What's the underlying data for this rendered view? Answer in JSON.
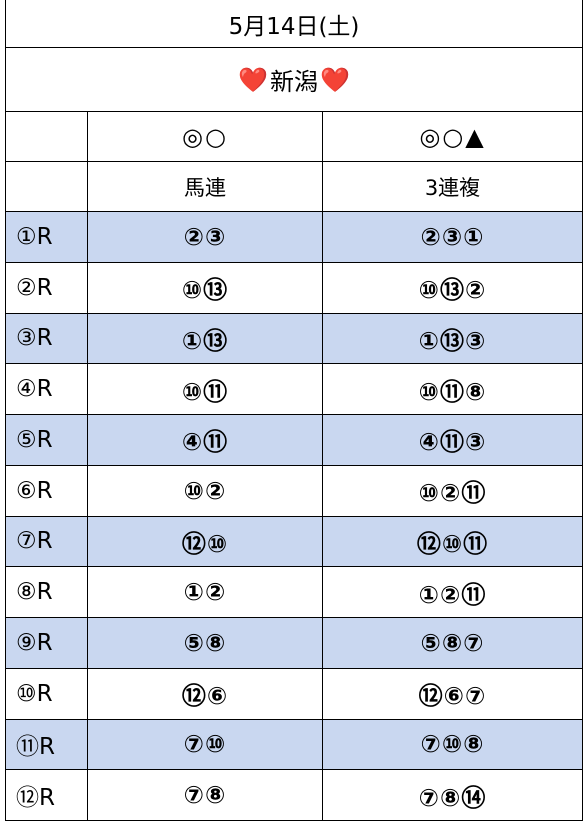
{
  "header": {
    "date": "5月14日(土)",
    "venue": "新潟",
    "heart_left": "❤️",
    "heart_right": "❤️"
  },
  "columns": {
    "col2_marks": "◎○",
    "col3_marks": "◎○▲",
    "col2_label": "馬連",
    "col3_label": "3連複"
  },
  "rows": [
    {
      "race": "①R",
      "umaren": "②③",
      "sanrenpuku": "②③①"
    },
    {
      "race": "②R",
      "umaren": "⑩⑬",
      "sanrenpuku": "⑩⑬②"
    },
    {
      "race": "③R",
      "umaren": "①⑬",
      "sanrenpuku": "①⑬③"
    },
    {
      "race": "④R",
      "umaren": "⑩⑪",
      "sanrenpuku": "⑩⑪⑧"
    },
    {
      "race": "⑤R",
      "umaren": "④⑪",
      "sanrenpuku": "④⑪③"
    },
    {
      "race": "⑥R",
      "umaren": "⑩②",
      "sanrenpuku": "⑩②⑪"
    },
    {
      "race": "⑦R",
      "umaren": "⑫⑩",
      "sanrenpuku": "⑫⑩⑪"
    },
    {
      "race": "⑧R",
      "umaren": "①②",
      "sanrenpuku": "①②⑪"
    },
    {
      "race": "⑨R",
      "umaren": "⑤⑧",
      "sanrenpuku": "⑤⑧⑦"
    },
    {
      "race": "⑩R",
      "umaren": "⑫⑥",
      "sanrenpuku": "⑫⑥⑦"
    },
    {
      "race": "⑪R",
      "umaren": "⑦⑩",
      "sanrenpuku": "⑦⑩⑧"
    },
    {
      "race": "⑫R",
      "umaren": "⑦⑧",
      "sanrenpuku": "⑦⑧⑭"
    }
  ],
  "colors": {
    "shade": "#c9d7f0",
    "border": "#000000"
  }
}
